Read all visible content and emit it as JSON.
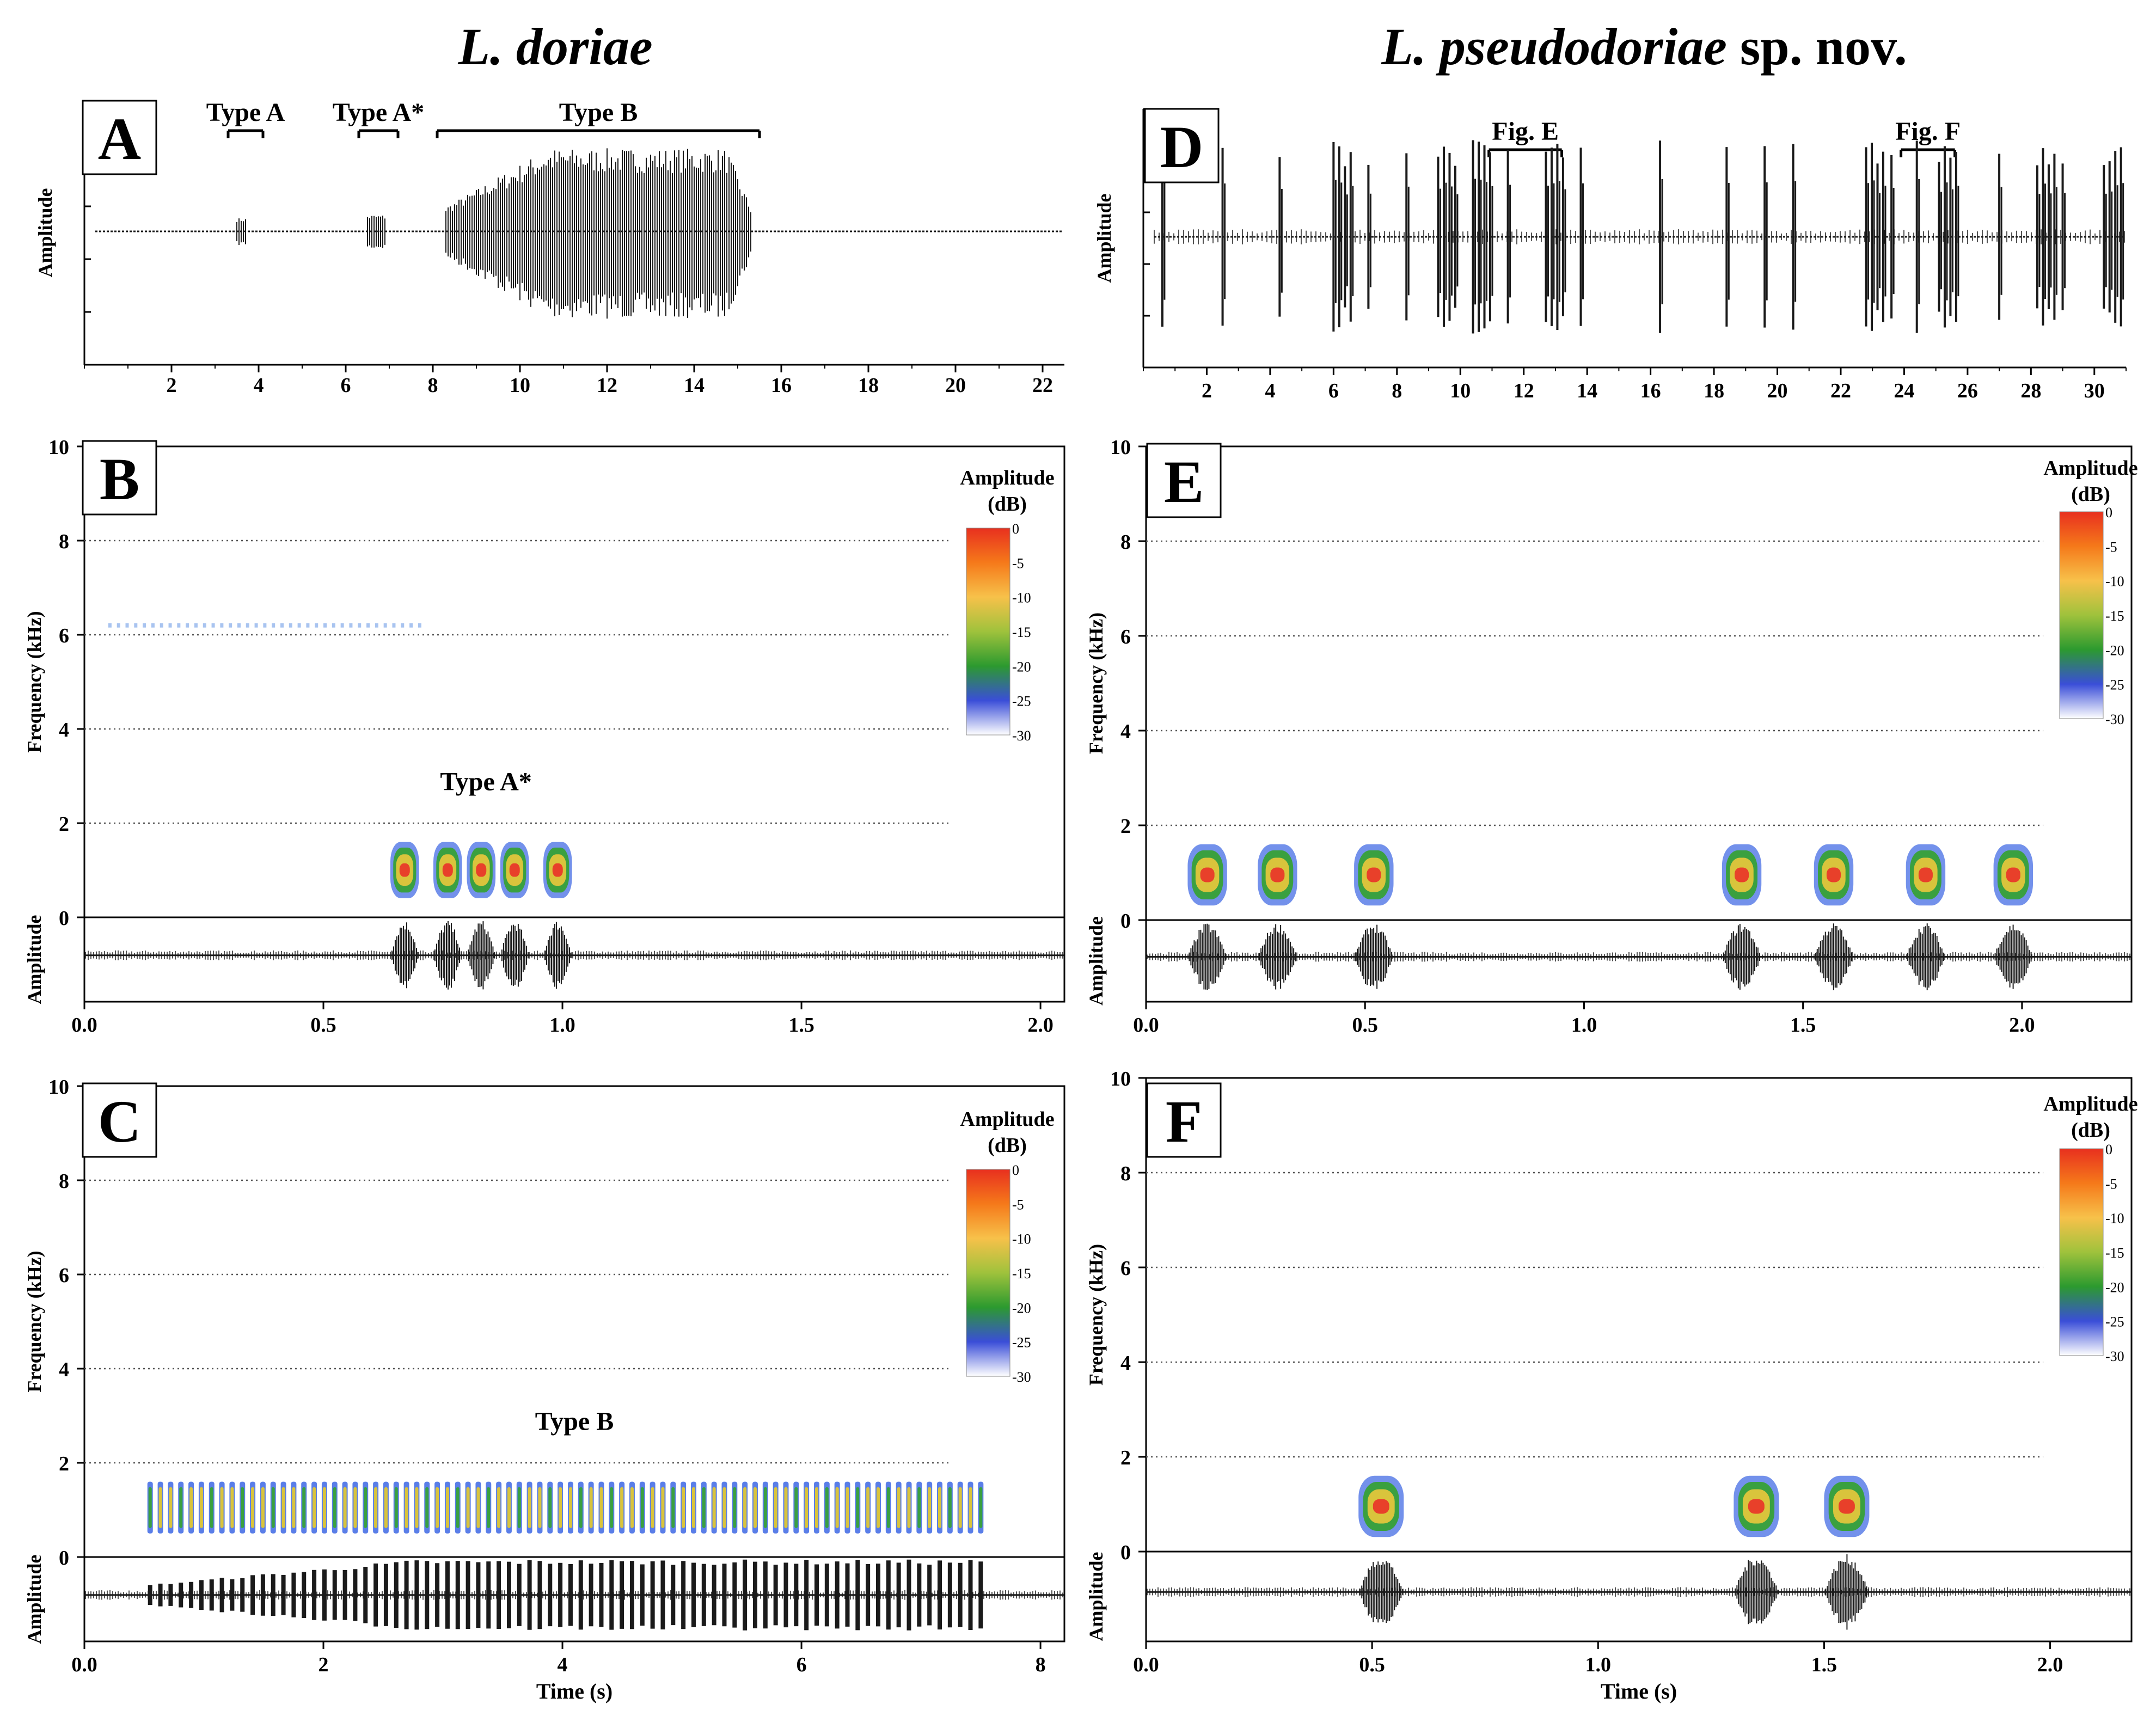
{
  "figure": {
    "left_species": "L. doriae",
    "right_species_italic": "L. pseudodoriae",
    "right_species_suffix": " sp. nov."
  },
  "colorbar": {
    "title_line1": "Amplitude",
    "title_line2": "(dB)",
    "ticks": [
      "0",
      "-5",
      "-10",
      "-15",
      "-20",
      "-25",
      "-30"
    ],
    "stops": [
      "#e8301f",
      "#f5791a",
      "#f7c14a",
      "#9fc23c",
      "#2c9a2f",
      "#3a4ed8",
      "#ffffff"
    ]
  },
  "colors": {
    "waveform": "#1a1a1a",
    "grid": "#555555",
    "spectro_outer": "#5a7ee8",
    "spectro_mid": "#3aa040",
    "spectro_inner": "#d9c43c",
    "spectro_core": "#e8402a"
  },
  "chart_data": [
    {
      "panel": "A",
      "type": "line",
      "subtype": "oscillogram",
      "ylabel": "Amplitude",
      "xlabel": "",
      "xlim": [
        0,
        22.5
      ],
      "xticks": [
        2,
        4,
        6,
        8,
        10,
        12,
        14,
        16,
        18,
        20,
        22
      ],
      "bracket_labels": [
        "Type A",
        "Type A*",
        "Type B"
      ],
      "brackets": [
        {
          "label": "Type A",
          "x0": 3.3,
          "x1": 4.1
        },
        {
          "label": "Type A*",
          "x0": 6.3,
          "x1": 7.2
        },
        {
          "label": "Type B",
          "x0": 8.1,
          "x1": 15.5
        }
      ],
      "segments": [
        {
          "x0": 3.5,
          "x1": 3.7,
          "amp": 0.12
        },
        {
          "x0": 6.5,
          "x1": 6.9,
          "amp": 0.15
        },
        {
          "x0": 8.3,
          "x1": 15.3,
          "amp": 0.75,
          "shape": "swell"
        }
      ]
    },
    {
      "panel": "B",
      "type": "heatmap",
      "subtype": "spectrogram",
      "ylabel": "Frequency (kHz)",
      "ylabel2": "Amplitude",
      "xlim": [
        0,
        2.05
      ],
      "ylim": [
        0,
        10
      ],
      "xticks": [
        "0.0",
        "0.5",
        "1.0",
        "1.5",
        "2.0"
      ],
      "yticks": [
        "0",
        "2",
        "4",
        "6",
        "8",
        "10"
      ],
      "annotation": "Type A*",
      "notes": [
        0.67,
        0.76,
        0.83,
        0.9,
        0.99
      ],
      "note_width": 0.06,
      "freq_low": 0.5,
      "freq_high": 1.6,
      "faint_band": {
        "x0": 0.05,
        "x1": 0.7,
        "freq": 6.2
      }
    },
    {
      "panel": "C",
      "type": "heatmap",
      "subtype": "spectrogram",
      "ylabel": "Frequency (kHz)",
      "ylabel2": "Amplitude",
      "xlabel": "Time (s)",
      "xlim": [
        0,
        8.2
      ],
      "ylim": [
        0,
        10
      ],
      "xticks": [
        "0.0",
        "2",
        "4",
        "6",
        "8"
      ],
      "yticks": [
        "0",
        "2",
        "4",
        "6",
        "8",
        "10"
      ],
      "annotation": "Type B",
      "pulse_train": {
        "x0": 0.55,
        "x1": 7.5,
        "count": 82,
        "freq_low": 0.5,
        "freq_high": 1.6
      }
    },
    {
      "panel": "D",
      "type": "line",
      "subtype": "oscillogram",
      "ylabel": "Amplitude",
      "xlabel": "",
      "xlim": [
        0,
        31
      ],
      "xticks": [
        2,
        4,
        6,
        8,
        10,
        12,
        14,
        16,
        18,
        20,
        22,
        24,
        26,
        28,
        30
      ],
      "bracket_labels": [
        "Fig. E",
        "Fig. F"
      ],
      "brackets": [
        {
          "label": "Fig. E",
          "x0": 10.9,
          "x1": 13.2
        },
        {
          "label": "Fig. F",
          "x0": 23.9,
          "x1": 25.6
        }
      ],
      "calls": [
        0.6,
        2.5,
        4.3,
        6.0,
        7.1,
        8.3,
        9.3,
        10.4,
        11.5,
        12.7,
        13.8,
        16.3,
        18.4,
        19.6,
        20.5,
        22.8,
        23.6,
        24.4,
        25.1,
        27.0,
        28.2,
        29.0,
        30.3
      ],
      "double_calls": [
        6.0,
        9.3,
        10.4,
        12.7,
        22.8,
        25.1,
        28.2,
        30.3
      ]
    },
    {
      "panel": "E",
      "type": "heatmap",
      "subtype": "spectrogram",
      "ylabel": "Frequency (kHz)",
      "ylabel2": "Amplitude",
      "xlim": [
        0,
        2.25
      ],
      "ylim": [
        0,
        10
      ],
      "xticks": [
        "0.0",
        "0.5",
        "1.0",
        "1.5",
        "2.0"
      ],
      "yticks": [
        "0",
        "2",
        "4",
        "6",
        "8",
        "10"
      ],
      "notes": [
        0.14,
        0.3,
        0.52,
        1.36,
        1.57,
        1.78,
        1.98
      ],
      "note_width": 0.09,
      "freq_low": 0.4,
      "freq_high": 1.6
    },
    {
      "panel": "F",
      "type": "heatmap",
      "subtype": "spectrogram",
      "ylabel": "Frequency (kHz)",
      "ylabel2": "Amplitude",
      "xlabel": "Time (s)",
      "xlim": [
        0,
        2.18
      ],
      "ylim": [
        0,
        10
      ],
      "xticks": [
        "0.0",
        "0.5",
        "1.0",
        "1.5",
        "2.0"
      ],
      "yticks": [
        "0",
        "2",
        "4",
        "6",
        "8",
        "10"
      ],
      "notes": [
        0.52,
        1.35,
        1.55
      ],
      "note_width": 0.1,
      "freq_low": 0.4,
      "freq_high": 1.6
    }
  ]
}
